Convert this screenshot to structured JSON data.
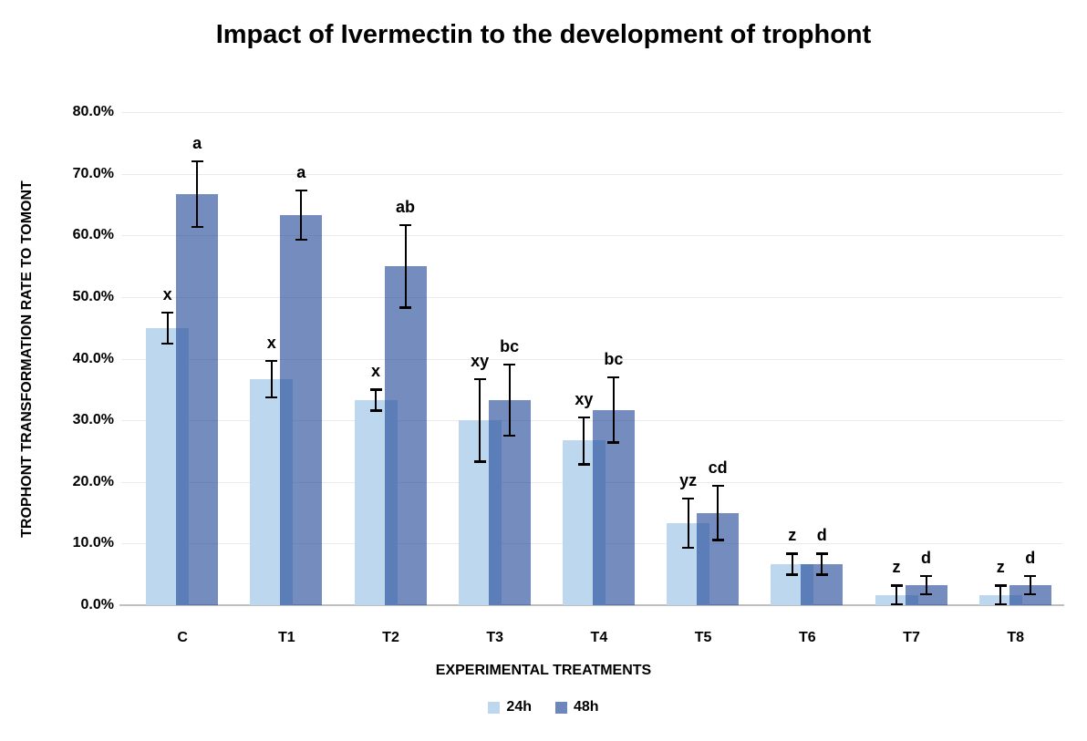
{
  "title": "Impact of Ivermectin to the development of trophont",
  "axes": {
    "x_title": "EXPERIMENTAL TREATMENTS",
    "y_title": "TROPHONT TRANSFORMATION RATE TO TOMONT"
  },
  "legend": {
    "items": [
      {
        "label": "24h",
        "color": "#BDD7EE"
      },
      {
        "label": "48h",
        "color": "#6D87BC"
      }
    ]
  },
  "colors": {
    "series_24h": "#BDD7EE",
    "series_48h_rgba": "rgba(30,70,150,0.62)",
    "series_48h_solid": "#6D87BC",
    "gridline": "#EAEAEA",
    "x_axis_line": "#BFBFBF",
    "error_bar": "#000000",
    "text": "#000000"
  },
  "chart_data": {
    "type": "bar",
    "title": "Impact of Ivermectin to the development of trophont",
    "xlabel": "EXPERIMENTAL TREATMENTS",
    "ylabel": "TROPHONT TRANSFORMATION RATE TO TOMONT",
    "categories": [
      "C",
      "T1",
      "T2",
      "T3",
      "T4",
      "T5",
      "T6",
      "T7",
      "T8"
    ],
    "ylim": [
      0,
      80
    ],
    "ytick_step": 10,
    "ytick_labels": [
      "0.0%",
      "10.0%",
      "20.0%",
      "30.0%",
      "40.0%",
      "50.0%",
      "60.0%",
      "70.0%",
      "80.0%"
    ],
    "grid": true,
    "legend_position": "bottom",
    "units": "percent",
    "error_bars": true,
    "series": [
      {
        "name": "24h",
        "color": "#BDD7EE",
        "values": [
          45.0,
          36.7,
          33.3,
          30.0,
          26.7,
          13.3,
          6.7,
          1.7,
          1.7
        ],
        "errors": [
          2.5,
          3.0,
          1.7,
          6.7,
          3.8,
          4.0,
          1.7,
          1.5,
          1.5
        ],
        "sig_letters": [
          "x",
          "x",
          "x",
          "xy",
          "xy",
          "yz",
          "z",
          "z",
          "z"
        ]
      },
      {
        "name": "48h",
        "color": "#6D87BC",
        "values": [
          66.7,
          63.3,
          55.0,
          33.3,
          31.7,
          15.0,
          6.7,
          3.3,
          3.3
        ],
        "errors": [
          5.3,
          4.0,
          6.7,
          5.8,
          5.3,
          4.4,
          1.7,
          1.5,
          1.5
        ],
        "sig_letters": [
          "a",
          "a",
          "ab",
          "bc",
          "bc",
          "cd",
          "d",
          "d",
          "d"
        ]
      }
    ]
  }
}
